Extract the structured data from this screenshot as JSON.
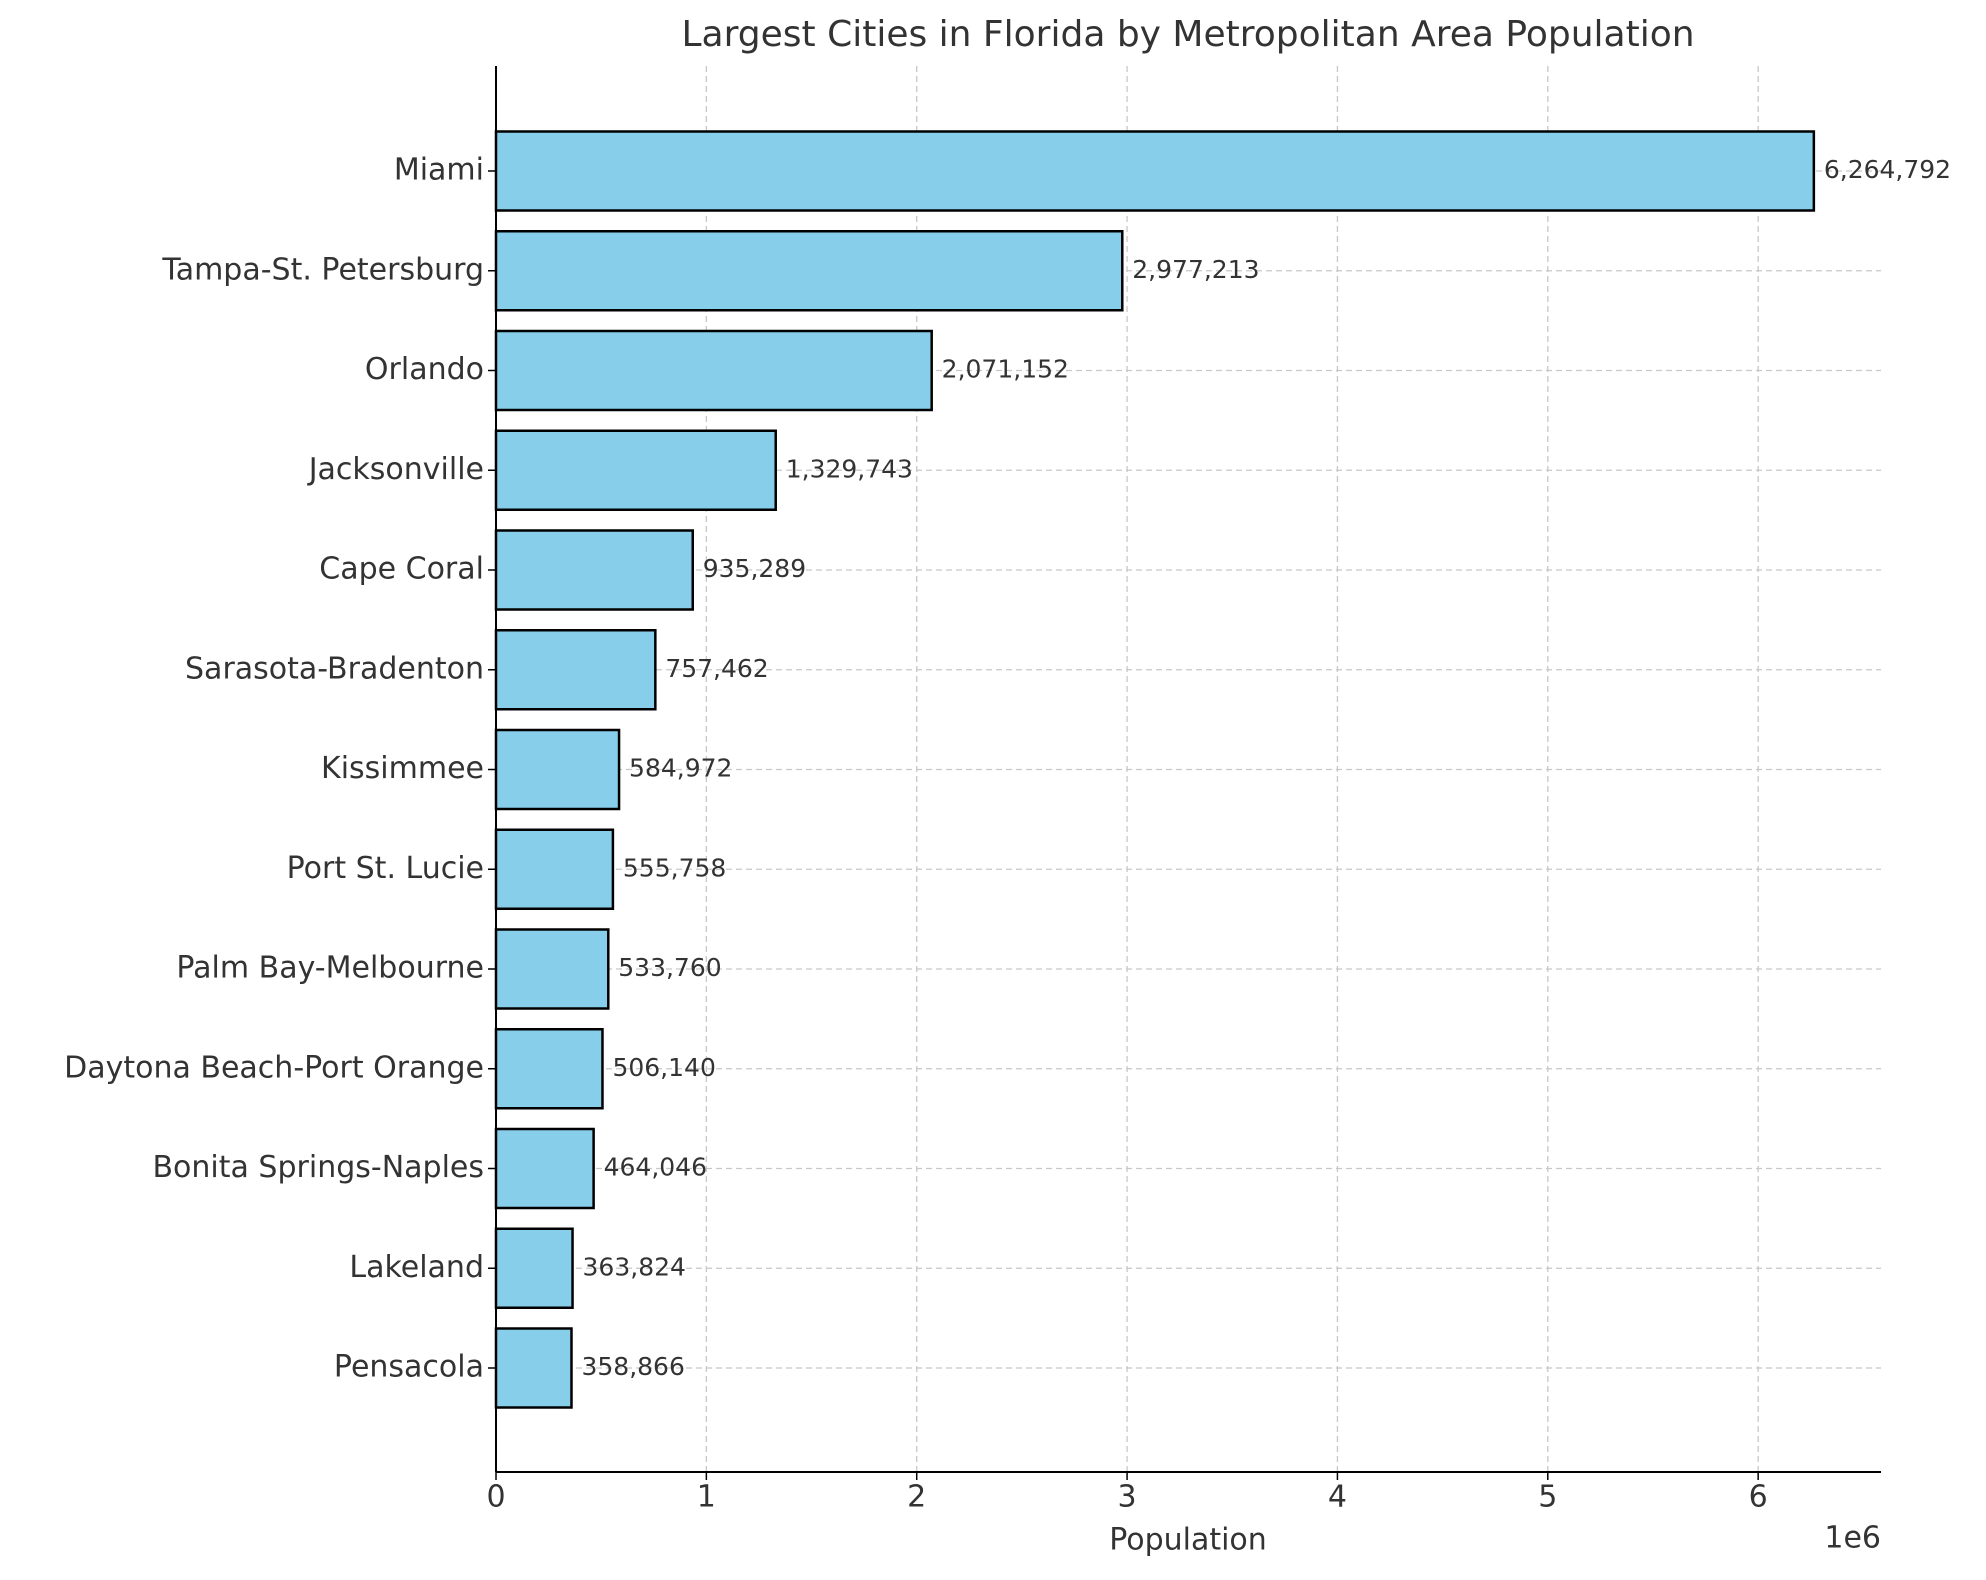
{
  "chart_data": {
    "type": "barh",
    "title": "Largest Cities in Florida by Metropolitan Area Population",
    "x_label": "Population",
    "x_offset_label": "1e6",
    "categories": [
      "Miami",
      "Tampa-St. Petersburg",
      "Orlando",
      "Jacksonville",
      "Cape Coral",
      "Sarasota-Bradenton",
      "Kissimmee",
      "Port St. Lucie",
      "Palm Bay-Melbourne",
      "Daytona Beach-Port Orange",
      "Bonita Springs-Naples",
      "Lakeland",
      "Pensacola"
    ],
    "values": [
      6264792,
      2977213,
      2071152,
      1329743,
      935289,
      757462,
      584972,
      555758,
      533760,
      506140,
      464046,
      363824,
      358866
    ],
    "value_labels": [
      "6,264,792",
      "2,977,213",
      "2,071,152",
      "1,329,743",
      "935,289",
      "757,462",
      "584,972",
      "555,758",
      "533,760",
      "506,140",
      "464,046",
      "363,824",
      "358,866"
    ],
    "color": "#87ceeb",
    "edge_color": "#000000",
    "xlim": [
      0,
      6584000
    ],
    "xticks": [
      {
        "value": 0,
        "label": "0"
      },
      {
        "value": 1000000,
        "label": "1"
      },
      {
        "value": 2000000,
        "label": "2"
      },
      {
        "value": 3000000,
        "label": "3"
      },
      {
        "value": 4000000,
        "label": "4"
      },
      {
        "value": 5000000,
        "label": "5"
      },
      {
        "value": 6000000,
        "label": "6"
      }
    ],
    "grid": true
  }
}
